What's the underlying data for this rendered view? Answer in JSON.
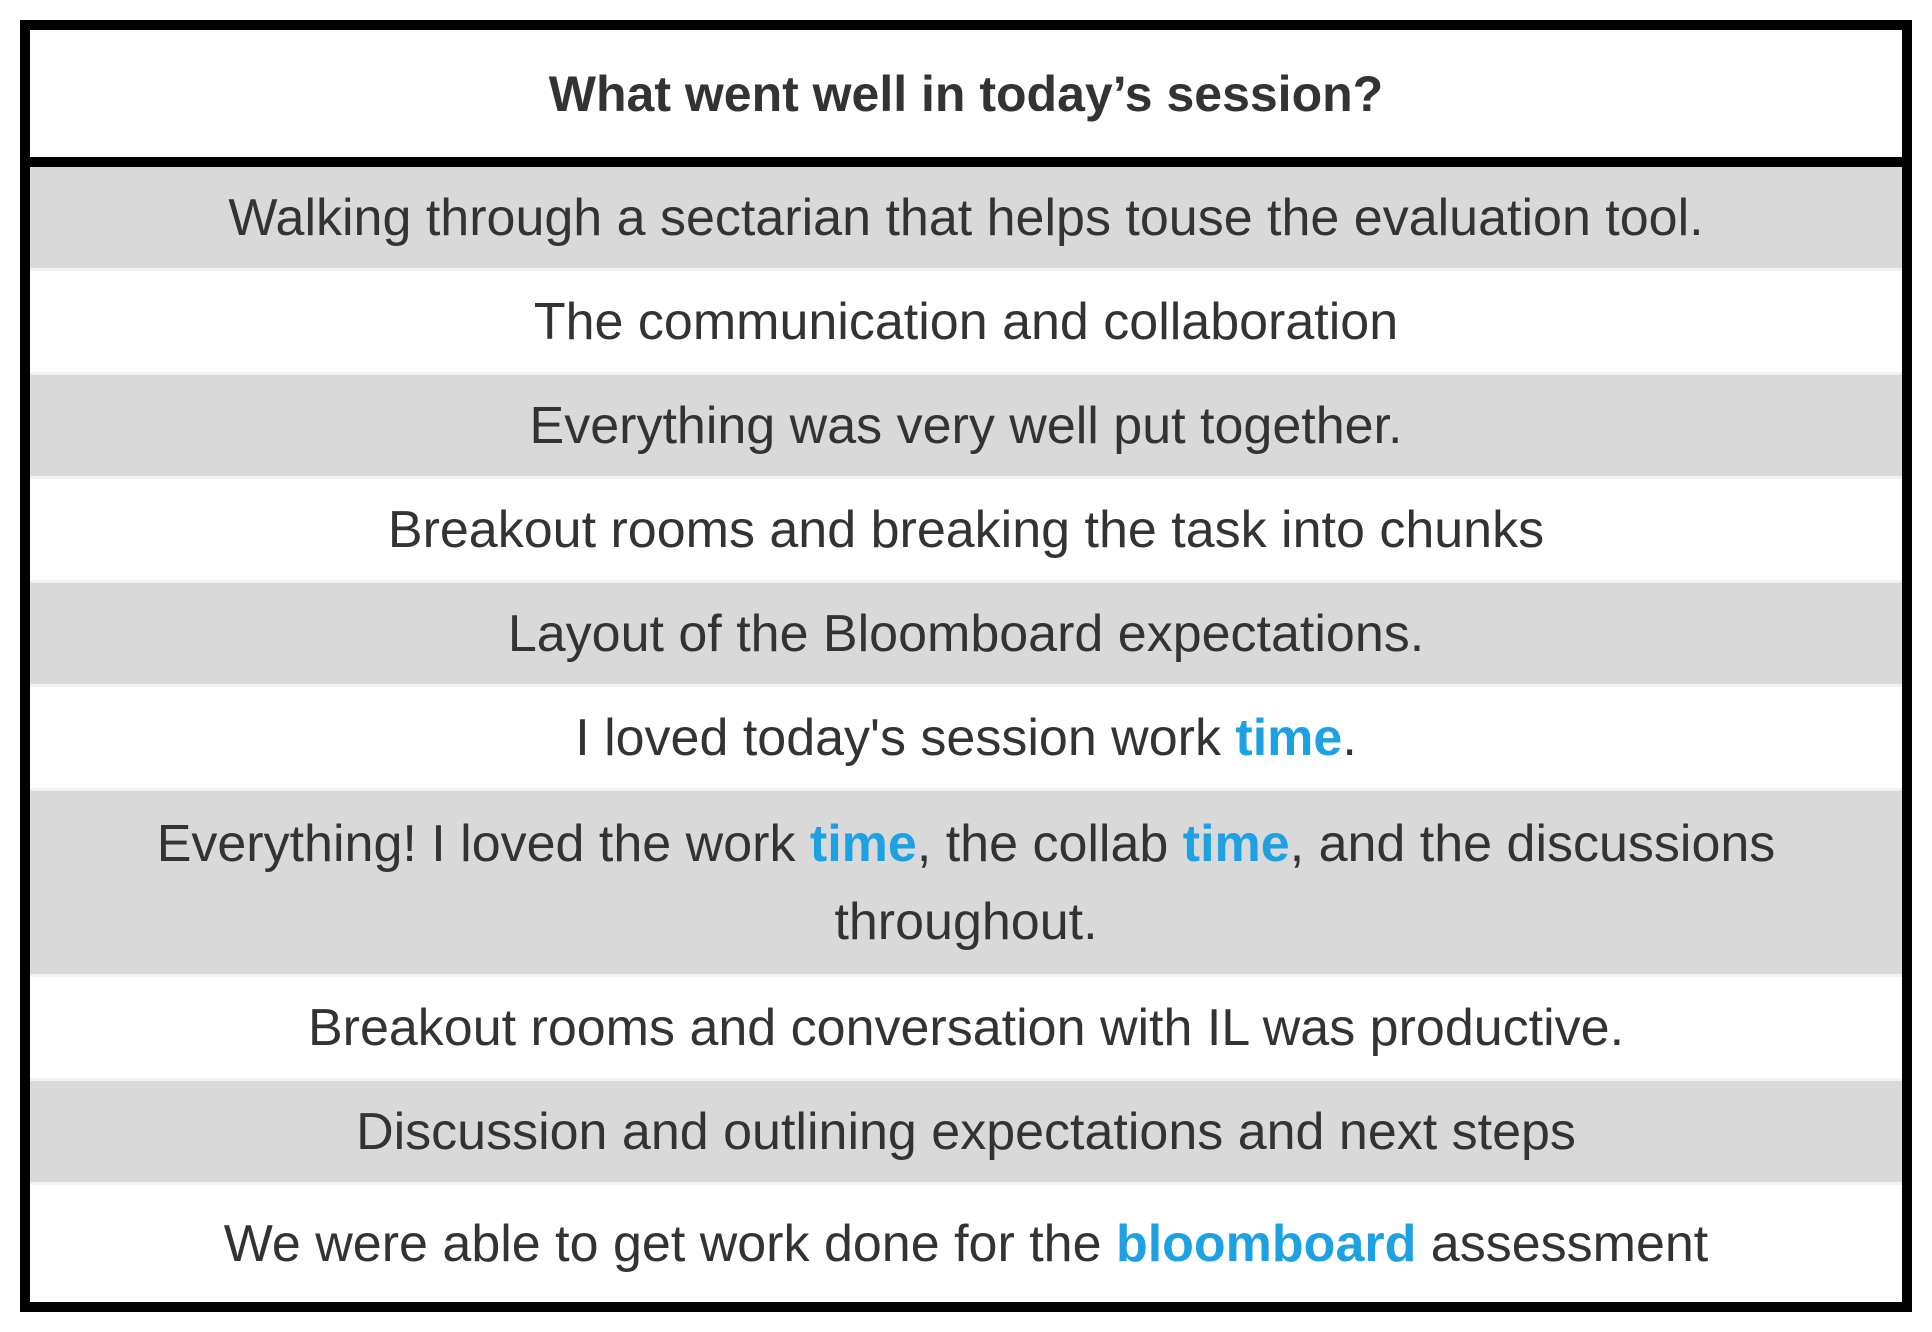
{
  "table": {
    "title": "What went well in today’s session?",
    "highlight_color": "#1da1e2",
    "rows": [
      {
        "text": "Walking through a sectarian that helps touse the evaluation tool."
      },
      {
        "text": "The communication and collaboration"
      },
      {
        "text": "Everything was very well put together."
      },
      {
        "text": "Breakout rooms and breaking the task into chunks"
      },
      {
        "text": "Layout of the Bloomboard expectations."
      },
      {
        "p1": "I loved today's session work ",
        "h1": "time",
        "p2": "."
      },
      {
        "p1": "Everything! I loved the work ",
        "h1": "time",
        "p2": ", the collab ",
        "h2": "time",
        "p3": ", and the discussions throughout."
      },
      {
        "text": "Breakout rooms and conversation with IL was productive."
      },
      {
        "text": "Discussion and outlining expectations and next steps"
      },
      {
        "p1": "We were able to get work done for the ",
        "h1": "bloomboard",
        "p2": " assessment"
      }
    ]
  }
}
